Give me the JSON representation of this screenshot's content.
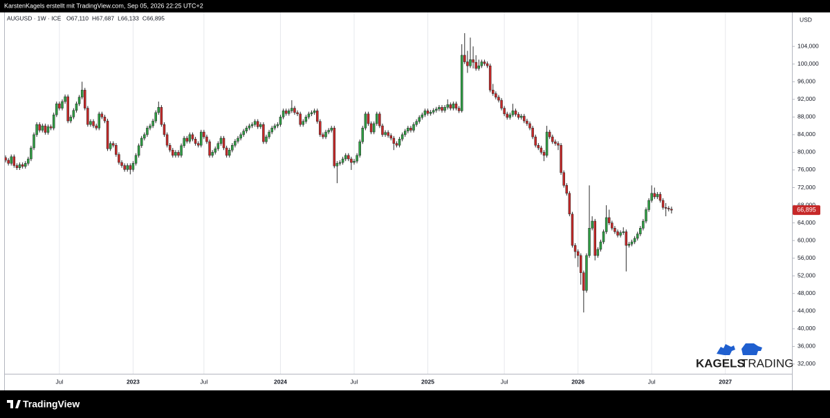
{
  "header": "KarstenKagels erstellt mit TradingView.com, Sep 05, 2026 22:25 UTC+2",
  "footer": "TradingView",
  "watermark": {
    "first": "KAGELS",
    "second": "TRADING"
  },
  "chart_data": {
    "type": "candlestick",
    "title": "AUGUSD · 1W · ICE",
    "legend_values": [
      "O67,110",
      "H67,687",
      "L66,133",
      "C66,895"
    ],
    "y_unit": "USD",
    "last_price_label": "66,895",
    "up_color": "#2f9e44",
    "down_color": "#c62828",
    "wick_color": "#2a2a2a",
    "grid": {
      "x": true,
      "y": false
    },
    "ylim": [
      29.8,
      111.7
    ],
    "yticks": [
      {
        "value": 32,
        "label": "32,000"
      },
      {
        "value": 36,
        "label": "36,000"
      },
      {
        "value": 40,
        "label": "40,000"
      },
      {
        "value": 44,
        "label": "44,000"
      },
      {
        "value": 48,
        "label": "48,000"
      },
      {
        "value": 52,
        "label": "52,000"
      },
      {
        "value": 56,
        "label": "56,000"
      },
      {
        "value": 60,
        "label": "60,000"
      },
      {
        "value": 64,
        "label": "64,000"
      },
      {
        "value": 68,
        "label": "68,000"
      },
      {
        "value": 72,
        "label": "72,000"
      },
      {
        "value": 76,
        "label": "76,000"
      },
      {
        "value": 80,
        "label": "80,000"
      },
      {
        "value": 84,
        "label": "84,000"
      },
      {
        "value": 88,
        "label": "88,000"
      },
      {
        "value": 92,
        "label": "92,000"
      },
      {
        "value": 96,
        "label": "96,000"
      },
      {
        "value": 100,
        "label": "100,000"
      },
      {
        "value": 104,
        "label": "104,000"
      }
    ],
    "categories": [
      null,
      null,
      null,
      null,
      null,
      null,
      null,
      null,
      null,
      null,
      null,
      null,
      null,
      null,
      null,
      null,
      null,
      null,
      null,
      "Jul",
      null,
      null,
      null,
      null,
      null,
      null,
      null,
      null,
      null,
      null,
      null,
      null,
      null,
      null,
      null,
      null,
      null,
      null,
      null,
      null,
      null,
      null,
      null,
      null,
      null,
      "2023",
      null,
      null,
      null,
      null,
      null,
      null,
      null,
      null,
      null,
      null,
      null,
      null,
      null,
      null,
      null,
      null,
      null,
      null,
      null,
      null,
      null,
      null,
      null,
      null,
      "Jul",
      null,
      null,
      null,
      null,
      null,
      null,
      null,
      null,
      null,
      null,
      null,
      null,
      null,
      null,
      null,
      null,
      null,
      null,
      null,
      null,
      null,
      null,
      null,
      null,
      null,
      null,
      "2024",
      null,
      null,
      null,
      null,
      null,
      null,
      null,
      null,
      null,
      null,
      null,
      null,
      null,
      null,
      null,
      null,
      null,
      null,
      null,
      null,
      null,
      null,
      null,
      null,
      null,
      "Jul",
      null,
      null,
      null,
      null,
      null,
      null,
      null,
      null,
      null,
      null,
      null,
      null,
      null,
      null,
      null,
      null,
      null,
      null,
      null,
      null,
      null,
      null,
      null,
      null,
      null,
      "2025",
      null,
      null,
      null,
      null,
      null,
      null,
      null,
      null,
      null,
      null,
      null,
      null,
      null,
      null,
      null,
      null,
      null,
      null,
      null,
      null,
      null,
      null,
      null,
      null,
      null,
      null,
      "Jul",
      null,
      null,
      null,
      null,
      null,
      null,
      null,
      null,
      null,
      null,
      null,
      null,
      null,
      null,
      null,
      null,
      null,
      null,
      null,
      null,
      null,
      null,
      null,
      null,
      null,
      "2026",
      null,
      null,
      null,
      null,
      null,
      null,
      null,
      null,
      null,
      null,
      null,
      null,
      null,
      null,
      null,
      null,
      null,
      null,
      null,
      null,
      null,
      null,
      null,
      null,
      null,
      "Jul",
      null,
      null,
      null,
      null,
      null,
      null,
      null,
      null,
      null,
      null,
      null,
      null,
      null,
      null,
      null,
      null,
      null,
      null,
      null,
      null,
      null,
      null,
      null,
      null,
      null,
      "2027",
      null,
      null,
      null,
      null,
      null,
      null,
      null,
      null,
      null,
      null,
      null,
      null,
      null,
      null,
      null,
      null,
      null,
      null,
      null,
      null,
      null,
      null,
      null
    ],
    "open": [
      78.8,
      78.2,
      77.5,
      79.0,
      77.0,
      76.5,
      77.2,
      76.8,
      77.5,
      78.5,
      81.0,
      84.0,
      86.3,
      85.0,
      86.0,
      84.5,
      85.8,
      85.5,
      88.5,
      91.0,
      90.0,
      91.5,
      92.6,
      87.1,
      88.0,
      89.5,
      91.0,
      92.5,
      94.1,
      90.0,
      86.3,
      87.0,
      86.0,
      85.5,
      88.7,
      88.0,
      87.1,
      80.8,
      82.0,
      81.6,
      79.5,
      77.7,
      77.0,
      76.1,
      77.0,
      76.1,
      77.5,
      79.3,
      81.5,
      83.2,
      84.0,
      85.5,
      86.0,
      87.1,
      89.0,
      90.2,
      86.3,
      84.0,
      81.6,
      80.5,
      79.3,
      80.0,
      79.3,
      81.5,
      83.2,
      82.5,
      84.0,
      83.0,
      82.0,
      81.6,
      84.6,
      83.5,
      82.4,
      79.3,
      80.0,
      80.8,
      82.0,
      83.2,
      81.0,
      79.3,
      80.5,
      81.6,
      82.5,
      83.2,
      84.0,
      84.8,
      85.5,
      86.0,
      86.3,
      87.0,
      85.8,
      86.3,
      82.4,
      83.5,
      84.6,
      85.5,
      86.0,
      86.3,
      88.0,
      89.4,
      88.8,
      89.4,
      90.0,
      89.0,
      88.7,
      86.3,
      87.0,
      88.0,
      88.7,
      89.0,
      89.4,
      87.0,
      84.0,
      83.5,
      84.6,
      85.0,
      85.5,
      76.9,
      77.5,
      77.7,
      78.5,
      79.3,
      78.5,
      77.7,
      78.0,
      79.3,
      82.4,
      85.5,
      88.7,
      86.5,
      84.6,
      86.5,
      88.7,
      86.0,
      84.0,
      84.5,
      83.8,
      83.2,
      82.0,
      81.6,
      83.0,
      84.0,
      84.8,
      85.5,
      85.0,
      86.3,
      87.0,
      87.9,
      88.5,
      89.4,
      88.8,
      89.1,
      89.5,
      89.8,
      90.2,
      89.5,
      90.2,
      90.8,
      90.0,
      91.0,
      90.0,
      89.4,
      102.0,
      100.5,
      99.6,
      101.0,
      100.4,
      99.0,
      99.6,
      100.5,
      100.1,
      99.6,
      94.1,
      93.3,
      92.5,
      91.8,
      90.0,
      88.7,
      87.9,
      88.5,
      89.4,
      88.6,
      87.9,
      88.2,
      87.1,
      86.5,
      85.5,
      83.5,
      81.6,
      81.0,
      80.0,
      79.3,
      84.6,
      83.5,
      82.4,
      82.0,
      81.6,
      75.4,
      72.5,
      70.7,
      66.0,
      58.9,
      57.5,
      56.6,
      52.7,
      48.7,
      56.6,
      62.8,
      64.4,
      56.6,
      58.0,
      59.7,
      62.0,
      65.2,
      64.0,
      62.8,
      62.0,
      61.2,
      61.8,
      62.0,
      58.9,
      59.2,
      59.7,
      60.5,
      61.5,
      62.8,
      64.4,
      67.0,
      69.1,
      70.7,
      69.9,
      70.5,
      69.1,
      67.5,
      67.3,
      67.11,
      null,
      null,
      null,
      null,
      null,
      null,
      null,
      null,
      null,
      null,
      null,
      null,
      null,
      null,
      null,
      null,
      null,
      null,
      null,
      null,
      null,
      null,
      null,
      null,
      null,
      null,
      null,
      null,
      null,
      null,
      null,
      null,
      null,
      null,
      null,
      null,
      null,
      null,
      null,
      null,
      null,
      null
    ],
    "high": [
      79.3,
      78.7,
      79.5,
      79.5,
      77.5,
      77.7,
      77.7,
      78.0,
      79.0,
      81.5,
      84.5,
      86.8,
      86.8,
      86.5,
      86.5,
      86.3,
      86.3,
      89.0,
      91.5,
      91.5,
      92.0,
      93.1,
      93.1,
      88.5,
      90.0,
      91.5,
      93.0,
      96.0,
      94.6,
      90.5,
      87.5,
      87.5,
      86.5,
      89.2,
      89.2,
      88.5,
      87.6,
      82.5,
      82.5,
      82.1,
      80.0,
      78.2,
      77.5,
      77.5,
      77.5,
      78.0,
      79.8,
      82.0,
      83.7,
      84.5,
      86.0,
      86.5,
      87.6,
      89.5,
      91.5,
      90.7,
      86.8,
      84.5,
      82.1,
      81.0,
      80.5,
      80.5,
      82.0,
      83.7,
      83.7,
      84.5,
      84.5,
      83.5,
      82.5,
      85.1,
      85.1,
      84.0,
      82.9,
      80.5,
      81.3,
      82.5,
      83.7,
      83.7,
      81.5,
      81.0,
      82.1,
      83.0,
      83.7,
      84.5,
      85.3,
      86.0,
      86.5,
      86.8,
      87.5,
      87.5,
      86.8,
      86.8,
      84.0,
      85.1,
      86.0,
      86.5,
      86.8,
      88.5,
      89.9,
      89.9,
      89.9,
      91.8,
      90.5,
      89.5,
      89.2,
      87.5,
      88.5,
      89.2,
      89.5,
      89.9,
      89.9,
      87.5,
      84.5,
      85.1,
      85.5,
      86.0,
      86.0,
      78.0,
      78.2,
      79.0,
      79.8,
      79.8,
      79.0,
      78.5,
      79.8,
      82.9,
      86.0,
      89.2,
      89.2,
      87.0,
      87.0,
      89.2,
      89.2,
      86.5,
      85.0,
      85.0,
      84.3,
      83.7,
      82.5,
      83.5,
      84.5,
      85.3,
      86.0,
      86.0,
      86.8,
      87.5,
      88.4,
      89.0,
      89.9,
      89.9,
      89.6,
      90.0,
      90.3,
      90.7,
      90.7,
      90.7,
      92.0,
      91.3,
      91.5,
      91.5,
      90.5,
      104.5,
      107.0,
      103.0,
      106.0,
      104.0,
      102.0,
      101.0,
      101.0,
      101.0,
      100.6,
      100.1,
      95.5,
      93.8,
      93.0,
      92.3,
      90.5,
      89.2,
      89.0,
      91.0,
      89.9,
      89.1,
      88.7,
      88.7,
      87.6,
      87.0,
      86.0,
      84.0,
      82.1,
      81.5,
      80.5,
      86.0,
      85.1,
      84.0,
      82.9,
      82.5,
      82.1,
      75.9,
      73.0,
      71.2,
      66.5,
      59.4,
      58.0,
      57.1,
      53.2,
      57.1,
      72.5,
      65.5,
      64.9,
      58.5,
      60.2,
      62.5,
      68.0,
      67.0,
      64.5,
      63.3,
      62.5,
      62.3,
      63.0,
      62.5,
      59.7,
      60.2,
      61.0,
      62.0,
      63.3,
      64.9,
      67.5,
      69.6,
      72.5,
      72.0,
      71.0,
      71.0,
      69.6,
      68.5,
      67.8,
      67.687,
      null,
      null,
      null,
      null,
      null,
      null,
      null,
      null,
      null,
      null,
      null,
      null,
      null,
      null,
      null,
      null,
      null,
      null,
      null,
      null,
      null,
      null,
      null,
      null,
      null,
      null,
      null,
      null,
      null,
      null,
      null,
      null,
      null,
      null,
      null,
      null,
      null,
      null,
      null,
      null,
      null,
      null
    ],
    "low": [
      77.7,
      77.0,
      77.0,
      76.5,
      76.0,
      76.0,
      76.3,
      76.3,
      77.0,
      78.0,
      80.5,
      83.5,
      84.5,
      84.5,
      84.0,
      84.0,
      85.0,
      85.0,
      88.0,
      89.5,
      89.5,
      91.0,
      86.6,
      86.6,
      87.5,
      89.0,
      90.5,
      92.0,
      89.5,
      85.8,
      85.8,
      85.5,
      85.0,
      85.0,
      87.5,
      86.6,
      80.3,
      80.3,
      81.1,
      79.0,
      77.2,
      76.5,
      75.6,
      75.6,
      75.0,
      75.6,
      77.0,
      78.8,
      81.0,
      82.7,
      83.5,
      85.0,
      85.5,
      86.6,
      88.5,
      85.8,
      83.5,
      81.1,
      80.0,
      78.8,
      78.8,
      78.8,
      78.8,
      81.0,
      82.0,
      82.0,
      82.5,
      81.5,
      81.1,
      81.1,
      83.0,
      81.9,
      78.8,
      78.8,
      79.5,
      80.3,
      81.5,
      80.5,
      78.8,
      78.8,
      80.0,
      81.1,
      82.0,
      82.7,
      83.5,
      84.3,
      85.0,
      85.5,
      85.8,
      85.3,
      85.3,
      81.9,
      81.9,
      83.0,
      84.1,
      85.0,
      85.5,
      85.8,
      87.5,
      88.3,
      88.3,
      88.9,
      88.5,
      88.2,
      85.8,
      85.8,
      86.5,
      87.5,
      88.2,
      88.5,
      86.5,
      83.5,
      83.0,
      83.0,
      84.1,
      84.5,
      76.4,
      73.0,
      77.0,
      77.2,
      78.0,
      78.0,
      76.0,
      77.2,
      77.5,
      78.8,
      81.9,
      85.0,
      86.0,
      84.1,
      84.1,
      86.0,
      85.5,
      83.5,
      83.5,
      83.3,
      82.7,
      80.5,
      81.1,
      81.1,
      82.5,
      83.5,
      84.3,
      84.5,
      84.5,
      85.8,
      86.5,
      87.4,
      88.0,
      88.3,
      88.3,
      88.6,
      89.0,
      89.3,
      89.0,
      89.0,
      89.7,
      89.5,
      89.5,
      89.5,
      88.9,
      89.0,
      100.0,
      98.0,
      99.1,
      99.0,
      98.5,
      98.5,
      99.1,
      99.6,
      99.1,
      93.6,
      92.8,
      92.0,
      91.3,
      89.5,
      88.2,
      87.4,
      87.4,
      88.0,
      88.1,
      87.4,
      87.4,
      86.6,
      86.0,
      85.0,
      83.0,
      81.1,
      80.5,
      79.5,
      78.0,
      78.8,
      83.0,
      81.9,
      81.5,
      80.5,
      74.9,
      72.0,
      70.2,
      65.5,
      58.4,
      56.0,
      54.0,
      50.0,
      43.7,
      48.2,
      56.1,
      62.3,
      55.5,
      56.1,
      57.5,
      59.2,
      61.5,
      63.5,
      62.3,
      61.5,
      60.7,
      60.7,
      61.3,
      53.0,
      58.4,
      58.7,
      59.2,
      60.0,
      61.0,
      62.3,
      63.9,
      66.5,
      68.6,
      69.4,
      69.4,
      68.6,
      67.0,
      65.5,
      66.6,
      66.133,
      null,
      null,
      null,
      null,
      null,
      null,
      null,
      null,
      null,
      null,
      null,
      null,
      null,
      null,
      null,
      null,
      null,
      null,
      null,
      null,
      null,
      null,
      null,
      null,
      null,
      null,
      null,
      null,
      null,
      null,
      null,
      null,
      null,
      null,
      null,
      null,
      null,
      null,
      null,
      null,
      null,
      null
    ],
    "close": [
      78.2,
      77.5,
      79.0,
      77.0,
      76.5,
      77.2,
      76.8,
      77.5,
      78.5,
      81.0,
      84.0,
      86.3,
      85.0,
      86.0,
      84.5,
      85.8,
      85.5,
      88.5,
      91.0,
      90.0,
      91.5,
      92.6,
      87.1,
      88.0,
      89.5,
      91.0,
      92.5,
      94.1,
      90.0,
      86.3,
      87.0,
      86.0,
      85.5,
      88.7,
      88.0,
      87.1,
      80.8,
      82.0,
      81.6,
      79.5,
      77.7,
      77.0,
      76.1,
      77.0,
      76.1,
      77.5,
      79.3,
      81.5,
      83.2,
      84.0,
      85.5,
      86.0,
      87.1,
      89.0,
      90.2,
      86.3,
      84.0,
      81.6,
      80.5,
      79.3,
      80.0,
      79.3,
      81.5,
      83.2,
      82.5,
      84.0,
      83.0,
      82.0,
      81.6,
      84.6,
      83.5,
      82.4,
      79.3,
      80.0,
      80.8,
      82.0,
      83.2,
      81.0,
      79.3,
      80.5,
      81.6,
      82.5,
      83.2,
      84.0,
      84.8,
      85.5,
      86.0,
      86.3,
      87.0,
      85.8,
      86.3,
      82.4,
      83.5,
      84.6,
      85.5,
      86.0,
      86.3,
      88.0,
      89.4,
      88.8,
      89.4,
      90.0,
      89.0,
      88.7,
      86.3,
      87.0,
      88.0,
      88.7,
      89.0,
      89.4,
      87.0,
      84.0,
      83.5,
      84.6,
      85.0,
      85.5,
      76.9,
      77.5,
      77.7,
      78.5,
      79.3,
      78.5,
      77.7,
      78.0,
      79.3,
      82.4,
      85.5,
      88.7,
      86.5,
      84.6,
      86.5,
      88.7,
      86.0,
      84.0,
      84.5,
      83.8,
      83.2,
      82.0,
      81.6,
      83.0,
      84.0,
      84.8,
      85.5,
      85.0,
      86.3,
      87.0,
      87.9,
      88.5,
      89.4,
      88.8,
      89.1,
      89.5,
      89.8,
      90.2,
      89.5,
      90.2,
      90.8,
      90.0,
      91.0,
      90.0,
      89.4,
      102.0,
      100.5,
      99.6,
      101.0,
      100.4,
      99.0,
      99.6,
      100.5,
      100.1,
      99.6,
      94.1,
      93.3,
      92.5,
      91.8,
      90.0,
      88.7,
      87.9,
      88.5,
      89.4,
      88.6,
      87.9,
      88.2,
      87.1,
      86.5,
      85.5,
      83.5,
      81.6,
      81.0,
      80.0,
      79.3,
      84.6,
      83.5,
      82.4,
      82.0,
      81.6,
      75.4,
      72.5,
      70.7,
      66.0,
      58.9,
      57.5,
      56.6,
      52.7,
      48.7,
      56.6,
      62.8,
      64.4,
      56.6,
      58.0,
      59.7,
      62.0,
      65.2,
      64.0,
      62.8,
      62.0,
      61.2,
      61.8,
      62.0,
      58.9,
      59.2,
      59.7,
      60.5,
      61.5,
      62.8,
      64.4,
      67.0,
      69.1,
      70.7,
      69.9,
      70.5,
      69.1,
      67.5,
      67.3,
      67.11,
      66.895,
      null,
      null,
      null,
      null,
      null,
      null,
      null,
      null,
      null,
      null,
      null,
      null,
      null,
      null,
      null,
      null,
      null,
      null,
      null,
      null,
      null,
      null,
      null,
      null,
      null,
      null,
      null,
      null,
      null,
      null,
      null,
      null,
      null,
      null,
      null,
      null,
      null,
      null,
      null,
      null,
      null,
      null
    ]
  }
}
